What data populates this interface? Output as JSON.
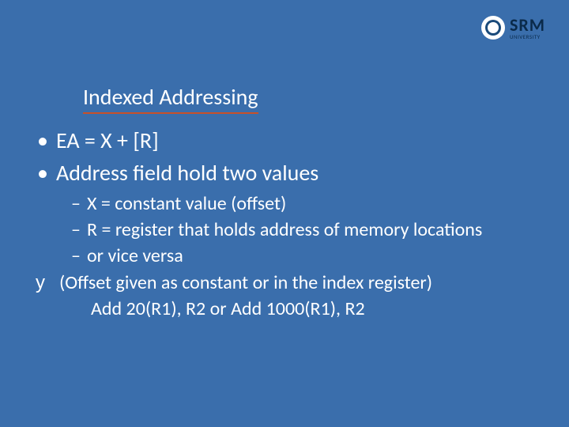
{
  "logo": {
    "brand": "SRM",
    "subtext": "UNIVERSITY"
  },
  "title": "Indexed  Addressing",
  "bullets": {
    "l1": [
      "EA = X + [R]",
      "Address field hold two values"
    ],
    "l2": [
      "X = constant value (offset)",
      "R = register that holds address of memory locations",
      "or vice versa"
    ],
    "offset_note": "(Offset given as constant or in the index register)",
    "example": "Add 20(R1), R2  or Add  1000(R1), R2"
  },
  "colors": {
    "background": "#3a6eac",
    "title_underline": "#c85028",
    "text": "#ffffff",
    "logo_dark": "#0a2a4a"
  },
  "fonts": {
    "title_size_pt": 28,
    "l1_size_pt": 28,
    "l2_size_pt": 24
  }
}
